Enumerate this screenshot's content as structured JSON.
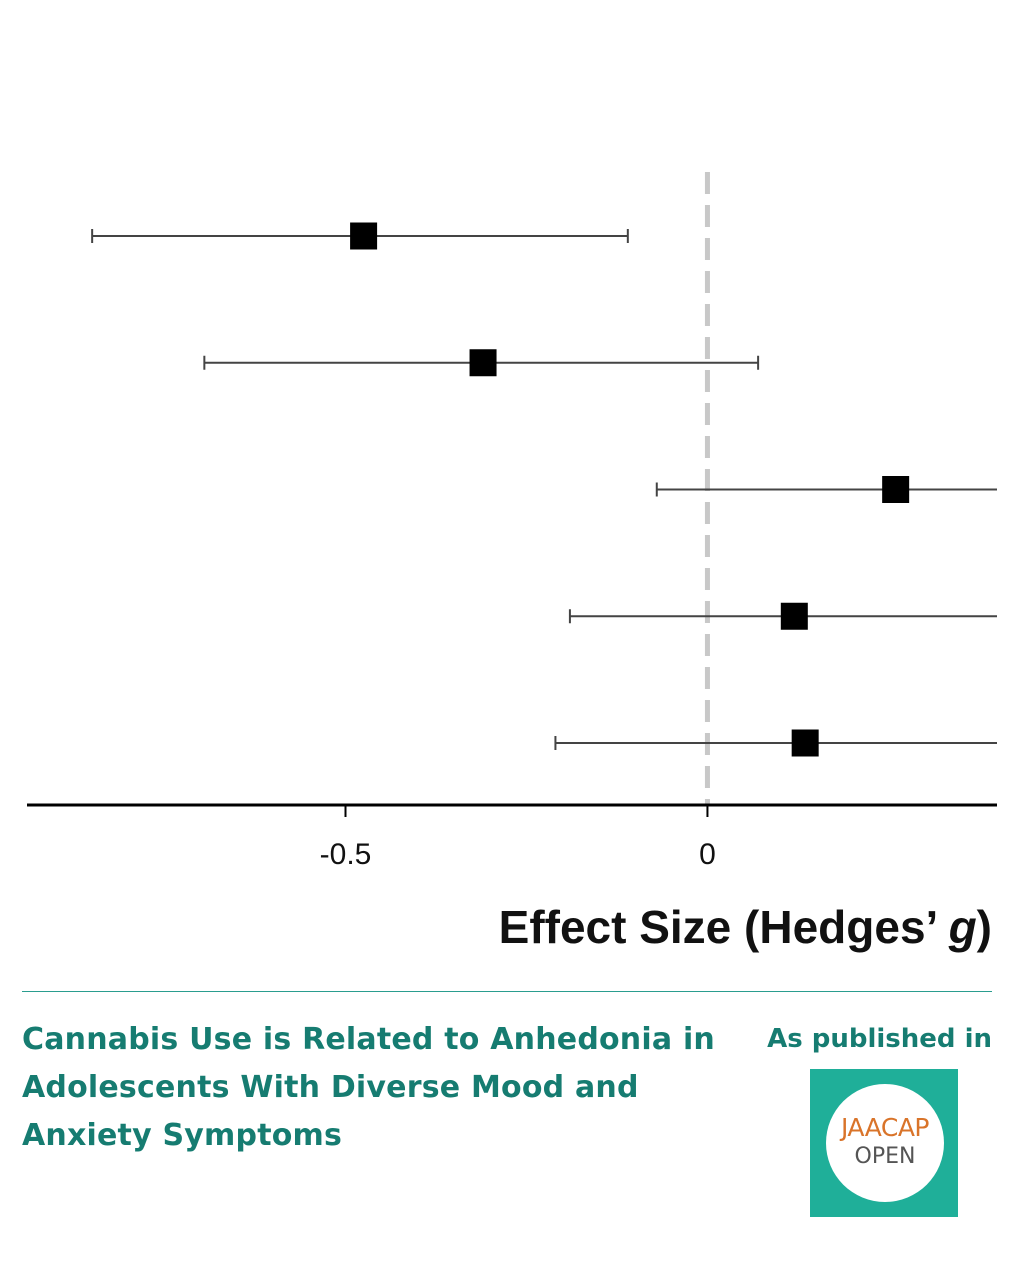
{
  "chart_data": {
    "type": "forest",
    "xlabel": "Effect Size (Hedges’ g)",
    "xlabel_main": "Effect Size (Hedges’ ",
    "xlabel_symbol": "g",
    "xlabel_close": ")",
    "xticks": [
      -0.5,
      0
    ],
    "xtick_labels": [
      "-0.5",
      "0"
    ],
    "xlim": [
      -0.94,
      0.4
    ],
    "reference_line": 0,
    "points": [
      {
        "estimate": -0.475,
        "ci_low": -0.85,
        "ci_high": -0.11
      },
      {
        "estimate": -0.31,
        "ci_low": -0.695,
        "ci_high": 0.07
      },
      {
        "estimate": 0.26,
        "ci_low": -0.07,
        "ci_high": 0.4
      },
      {
        "estimate": 0.12,
        "ci_low": -0.19,
        "ci_high": 0.4
      },
      {
        "estimate": 0.135,
        "ci_low": -0.21,
        "ci_high": 0.4
      }
    ],
    "colors": {
      "marker": "#000000",
      "ci_line": "#444444",
      "reference": "#c8c8c8",
      "axis": "#000000"
    }
  },
  "article": {
    "title": "Cannabis Use is Related to Anhedonia in Adolescents With Diverse Mood and Anxiety Symptoms"
  },
  "publication": {
    "label": "As published in",
    "logo_top": "JAACAP",
    "logo_bottom": "OPEN"
  },
  "colors": {
    "accent": "#167c71",
    "logo_bg": "#1faf99",
    "logo_orange": "#d9742a"
  }
}
